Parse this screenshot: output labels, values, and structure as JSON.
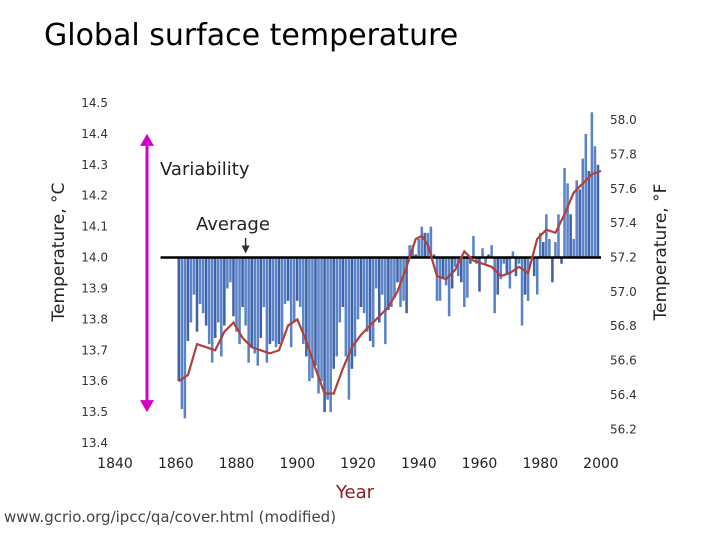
{
  "title": "Global surface temperature",
  "source": "www.gcrio.org/ipcc/qa/cover.html (modified)",
  "colors": {
    "bar": "#5b84c8",
    "bar_dark": "#3f62a8",
    "smooth": "#b0413a",
    "arrow": "#d400c8",
    "baseline": "#000000"
  },
  "chart_data": {
    "type": "bar",
    "title": "Global surface temperature",
    "xlabel": "Year",
    "ylabel_left": "Temperature, °C",
    "ylabel_right": "Temperature, °F",
    "xlim": [
      1840,
      2000
    ],
    "ylim": [
      13.4,
      14.5
    ],
    "baseline": 14.0,
    "x_ticks": [
      "1840",
      "1860",
      "1880",
      "1900",
      "1920",
      "1940",
      "1960",
      "1980",
      "2000"
    ],
    "y_ticks_left": [
      "14.5",
      "14.4",
      "14.3",
      "14.2",
      "14.1",
      "14.0",
      "13.9",
      "13.8",
      "13.7",
      "13.6",
      "13.5",
      "13.4"
    ],
    "y_ticks_right": [
      {
        "label": "58.0",
        "value": 58.0
      },
      {
        "label": "57.8",
        "value": 57.8
      },
      {
        "label": "57.6",
        "value": 57.6
      },
      {
        "label": "57.4",
        "value": 57.4
      },
      {
        "label": "57.2",
        "value": 57.2
      },
      {
        "label": "57.0",
        "value": 57.0
      },
      {
        "label": "56.8",
        "value": 56.8
      },
      {
        "label": "56.6",
        "value": 56.6
      },
      {
        "label": "56.4",
        "value": 56.4
      },
      {
        "label": "56.2",
        "value": 56.2
      }
    ],
    "annotations": {
      "variability": "Variability",
      "average": "Average"
    },
    "variability_range": [
      13.5,
      14.4
    ],
    "average_marker_year": 1883,
    "series": [
      {
        "name": "annual",
        "start_year": 1861,
        "values": [
          13.6,
          13.51,
          13.48,
          13.73,
          13.79,
          13.88,
          13.76,
          13.85,
          13.82,
          13.78,
          13.72,
          13.66,
          13.74,
          13.79,
          13.68,
          13.78,
          13.9,
          13.92,
          13.81,
          13.76,
          13.72,
          13.84,
          13.78,
          13.66,
          13.71,
          13.69,
          13.65,
          13.74,
          13.84,
          13.66,
          13.72,
          13.73,
          13.71,
          13.72,
          13.73,
          13.85,
          13.86,
          13.71,
          13.79,
          13.86,
          13.84,
          13.72,
          13.68,
          13.6,
          13.61,
          13.65,
          13.56,
          13.6,
          13.5,
          13.54,
          13.5,
          13.64,
          13.68,
          13.79,
          13.84,
          13.68,
          13.54,
          13.64,
          13.68,
          13.8,
          13.84,
          13.82,
          13.76,
          13.73,
          13.71,
          13.9,
          13.79,
          13.88,
          13.72,
          13.83,
          13.84,
          13.87,
          13.92,
          13.84,
          13.86,
          13.82,
          14.04,
          14.04,
          14.01,
          14.06,
          14.1,
          14.08,
          14.08,
          14.1,
          14.01,
          13.86,
          13.86,
          13.93,
          13.91,
          13.81,
          13.9,
          13.97,
          13.94,
          13.92,
          13.84,
          13.87,
          13.98,
          14.07,
          13.98,
          13.89,
          14.03,
          13.98,
          14.01,
          14.04,
          13.82,
          13.88,
          13.93,
          13.98,
          13.95,
          13.9,
          14.02,
          13.94,
          13.98,
          13.78,
          13.88,
          13.86,
          14.0,
          13.94,
          13.88,
          14.08,
          14.05,
          14.14,
          14.06,
          13.92,
          14.05,
          14.14,
          13.98,
          14.29,
          14.24,
          14.14,
          14.06,
          14.25,
          14.22,
          14.32,
          14.4,
          14.28,
          14.47,
          14.36,
          14.3
        ]
      },
      {
        "name": "smoothed",
        "points": [
          [
            1861,
            13.6
          ],
          [
            1864,
            13.62
          ],
          [
            1867,
            13.72
          ],
          [
            1870,
            13.71
          ],
          [
            1873,
            13.7
          ],
          [
            1876,
            13.76
          ],
          [
            1879,
            13.79
          ],
          [
            1882,
            13.74
          ],
          [
            1885,
            13.71
          ],
          [
            1888,
            13.7
          ],
          [
            1891,
            13.69
          ],
          [
            1894,
            13.7
          ],
          [
            1897,
            13.78
          ],
          [
            1900,
            13.8
          ],
          [
            1903,
            13.73
          ],
          [
            1906,
            13.64
          ],
          [
            1909,
            13.56
          ],
          [
            1912,
            13.56
          ],
          [
            1915,
            13.64
          ],
          [
            1918,
            13.71
          ],
          [
            1921,
            13.75
          ],
          [
            1924,
            13.78
          ],
          [
            1927,
            13.81
          ],
          [
            1930,
            13.84
          ],
          [
            1933,
            13.89
          ],
          [
            1936,
            13.97
          ],
          [
            1939,
            14.06
          ],
          [
            1941,
            14.07
          ],
          [
            1943,
            14.04
          ],
          [
            1946,
            13.94
          ],
          [
            1949,
            13.93
          ],
          [
            1952,
            13.96
          ],
          [
            1955,
            14.02
          ],
          [
            1958,
            13.99
          ],
          [
            1961,
            13.98
          ],
          [
            1964,
            13.97
          ],
          [
            1967,
            13.94
          ],
          [
            1970,
            13.95
          ],
          [
            1973,
            13.97
          ],
          [
            1976,
            13.95
          ],
          [
            1979,
            14.06
          ],
          [
            1982,
            14.09
          ],
          [
            1985,
            14.08
          ],
          [
            1988,
            14.14
          ],
          [
            1991,
            14.21
          ],
          [
            1994,
            14.24
          ],
          [
            1997,
            14.27
          ],
          [
            2000,
            14.28
          ]
        ]
      }
    ]
  }
}
